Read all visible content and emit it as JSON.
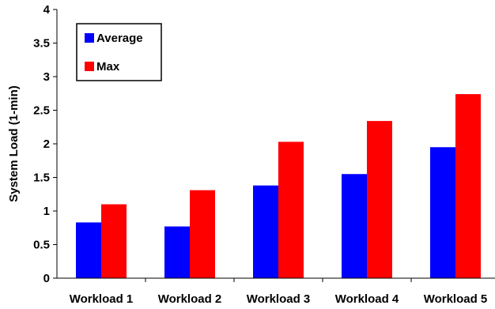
{
  "chart_data": {
    "type": "bar",
    "categories": [
      "Workload 1",
      "Workload 2",
      "Workload 3",
      "Workload 4",
      "Workload 5"
    ],
    "series": [
      {
        "name": "Average",
        "values": [
          0.83,
          0.77,
          1.38,
          1.55,
          1.95
        ],
        "color": "#0000ff"
      },
      {
        "name": "Max",
        "values": [
          1.1,
          1.31,
          2.03,
          2.34,
          2.74
        ],
        "color": "#ff0000"
      }
    ],
    "title": "",
    "xlabel": "",
    "ylabel": "System Load (1-min)",
    "ylim": [
      0,
      4
    ],
    "yticks": [
      "0",
      "0.5",
      "1",
      "1.5",
      "2",
      "2.5",
      "3",
      "3.5",
      "4"
    ],
    "grid": false,
    "legend_position": "top-left"
  }
}
